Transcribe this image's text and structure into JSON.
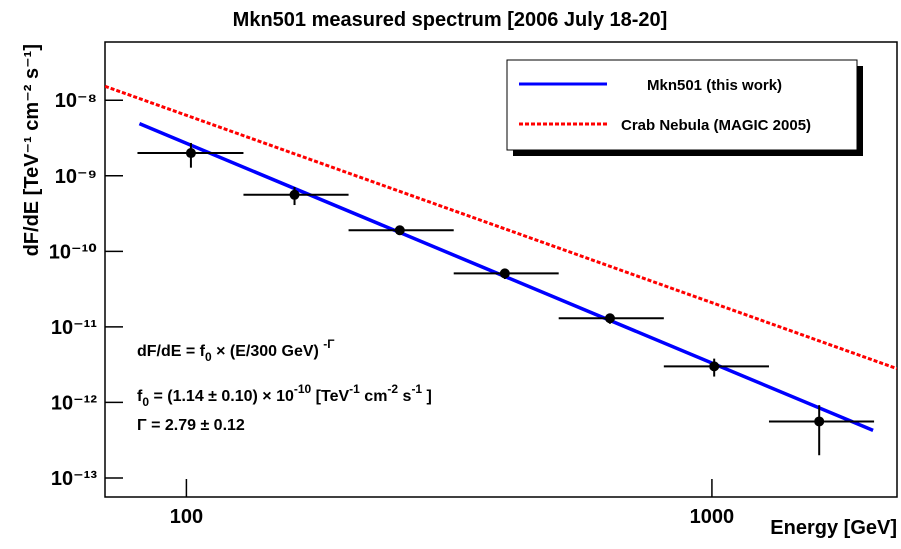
{
  "chart_data": {
    "type": "scatter",
    "title": "Mkn501 measured spectrum [2006 July 18-20]",
    "x_label": "Energy [GeV]",
    "y_label": "dF/dE [TeV⁻¹ cm⁻² s⁻¹]",
    "xscale": "log",
    "yscale": "log",
    "xlim": [
      70,
      2250
    ],
    "ylim": [
      5.6e-14,
      5.9e-08
    ],
    "xticks": [
      100,
      1000
    ],
    "yticks": [
      {
        "value": 1e-13,
        "label": "10⁻¹³"
      },
      {
        "value": 1e-12,
        "label": "10⁻¹²"
      },
      {
        "value": 1e-11,
        "label": "10⁻¹¹"
      },
      {
        "value": 1e-10,
        "label": "10⁻¹⁰"
      },
      {
        "value": 1e-09,
        "label": "10⁻⁹"
      },
      {
        "value": 1e-08,
        "label": "10⁻⁸"
      }
    ],
    "legend": "top-right",
    "series": [
      {
        "name": "Mkn501 (this work)",
        "color": "#0000ff",
        "dash": false,
        "x": [
          81.4,
          2026
        ],
        "values": [
          4.9e-09,
          4.26e-13
        ]
      },
      {
        "name": "Crab Nebula (MAGIC 2005)",
        "color": "#ff0000",
        "dash": true,
        "x": [
          70,
          2250
        ],
        "values": [
          1.53e-08,
          2.8e-12
        ]
      }
    ],
    "points": {
      "color": "#000000",
      "x": [
        102,
        160.6,
        254.7,
        403.6,
        639.7,
        1010,
        1600
      ],
      "x_low": [
        80.7,
        128.4,
        203.5,
        322.6,
        511,
        810,
        1284
      ],
      "x_high": [
        128.4,
        203.5,
        322.6,
        511,
        810,
        1284,
        2035
      ],
      "values": [
        2e-09,
        5.6e-10,
        1.9e-10,
        5.1e-11,
        1.3e-11,
        3e-12,
        5.6e-13
      ],
      "yerr": [
        7.2e-10,
        1.5e-10,
        2e-11,
        8e-12,
        2e-12,
        8e-13,
        3.6e-13
      ]
    },
    "annotations": [
      [
        {
          "text": "dF/dE = f"
        },
        {
          "text": "0",
          "sub": true
        },
        {
          "text": " × (E/300 GeV) "
        },
        {
          "text": "-Γ",
          "sup": true
        }
      ],
      [
        {
          "text": "f"
        },
        {
          "text": "0",
          "sub": true
        },
        {
          "text": " = (1.14 ± 0.10) × 10"
        },
        {
          "text": "-10",
          "sup": true
        },
        {
          "text": " [TeV"
        },
        {
          "text": "-1",
          "sup": true
        },
        {
          "text": " cm"
        },
        {
          "text": "-2",
          "sup": true
        },
        {
          "text": " s"
        },
        {
          "text": "-1",
          "sup": true
        },
        {
          "text": " ]"
        }
      ],
      [
        {
          "text": "Γ = 2.79 ± 0.12"
        }
      ]
    ]
  }
}
